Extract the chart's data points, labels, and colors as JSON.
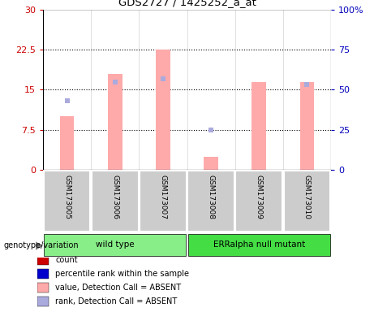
{
  "title": "GDS2727 / 1425252_a_at",
  "samples": [
    "GSM173005",
    "GSM173006",
    "GSM173007",
    "GSM173008",
    "GSM173009",
    "GSM173010"
  ],
  "pink_bar_values": [
    10.0,
    18.0,
    22.5,
    2.5,
    16.5,
    16.5
  ],
  "blue_marker_values_left_scale": [
    13.0,
    16.5,
    17.0,
    7.5,
    null,
    16.0
  ],
  "ylim_left": [
    0,
    30
  ],
  "ylim_right": [
    0,
    100
  ],
  "yticks_left": [
    0,
    7.5,
    15,
    22.5,
    30
  ],
  "yticks_right": [
    0,
    25,
    50,
    75,
    100
  ],
  "ytick_labels_left": [
    "0",
    "7.5",
    "15",
    "22.5",
    "30"
  ],
  "ytick_labels_right": [
    "0",
    "25",
    "50",
    "75",
    "100%"
  ],
  "left_color": "#cc0000",
  "right_color": "#0000bb",
  "pink_bar_color": "#ffaaaa",
  "blue_marker_color": "#aaaadd",
  "groups": [
    {
      "label": "wild type",
      "indices": [
        0,
        1,
        2
      ],
      "color": "#88ee88"
    },
    {
      "label": "ERRalpha null mutant",
      "indices": [
        3,
        4,
        5
      ],
      "color": "#44dd44"
    }
  ],
  "genotype_label": "genotype/variation",
  "legend_items": [
    {
      "label": "count",
      "color": "#cc0000"
    },
    {
      "label": "percentile rank within the sample",
      "color": "#0000cc"
    },
    {
      "label": "value, Detection Call = ABSENT",
      "color": "#ffaaaa"
    },
    {
      "label": "rank, Detection Call = ABSENT",
      "color": "#aaaadd"
    }
  ],
  "hline_color": "black",
  "hline_style": "dotted",
  "hlines": [
    7.5,
    15,
    22.5
  ],
  "bar_width": 0.3,
  "sample_box_color": "#cccccc",
  "plot_border_color": "black"
}
